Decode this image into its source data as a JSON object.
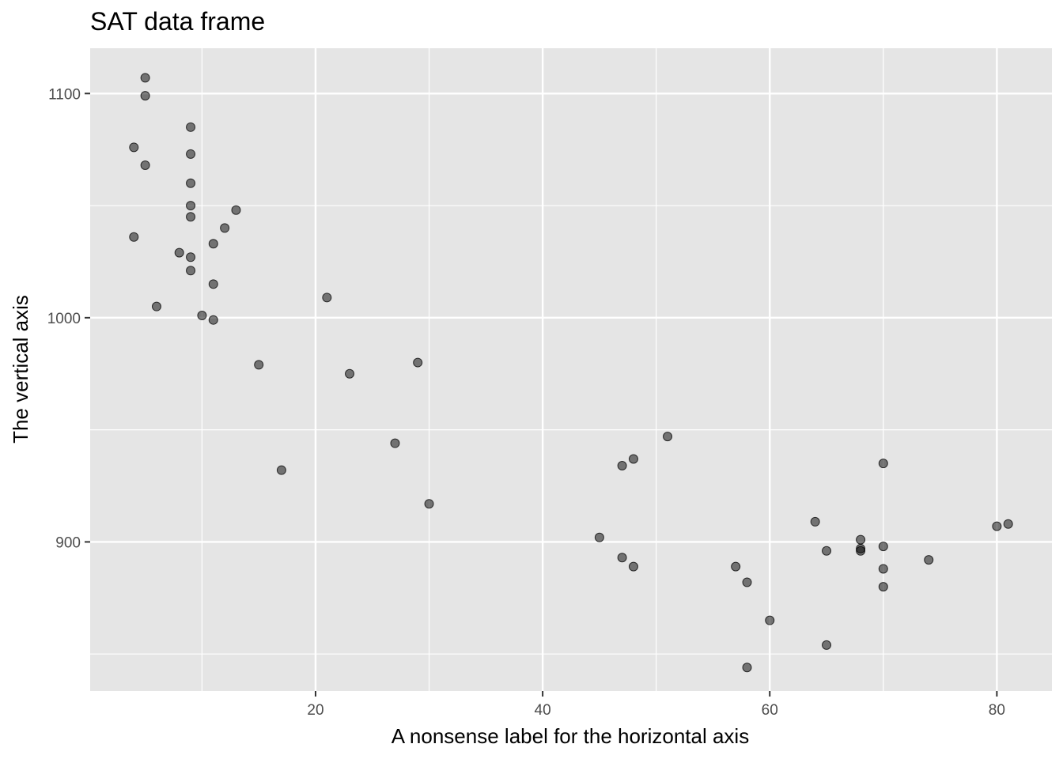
{
  "chart_data": {
    "type": "scatter",
    "title": "SAT data frame",
    "xlabel": "A nonsense label for the horizontal axis",
    "ylabel": "The vertical axis",
    "xlim": [
      0.15,
      84.85
    ],
    "ylim": [
      833.5,
      1120.2
    ],
    "x_ticks": [
      20,
      40,
      60,
      80
    ],
    "x_tick_labels": [
      "20",
      "40",
      "60",
      "80"
    ],
    "y_ticks": [
      900,
      1000,
      1100
    ],
    "y_tick_labels": [
      "900",
      "1000",
      "1100"
    ],
    "grid": true,
    "legend": "none",
    "colors": {
      "panel_background": "#e5e5e5",
      "grid": "#ffffff",
      "point_fill": "#000000",
      "point_opacity": 0.5
    },
    "points": [
      {
        "x": 5,
        "y": 1107
      },
      {
        "x": 5,
        "y": 1099
      },
      {
        "x": 4,
        "y": 1076
      },
      {
        "x": 5,
        "y": 1068
      },
      {
        "x": 4,
        "y": 1036
      },
      {
        "x": 6,
        "y": 1005
      },
      {
        "x": 9,
        "y": 1085
      },
      {
        "x": 9,
        "y": 1073
      },
      {
        "x": 9,
        "y": 1060
      },
      {
        "x": 9,
        "y": 1050
      },
      {
        "x": 9,
        "y": 1045
      },
      {
        "x": 9,
        "y": 1027
      },
      {
        "x": 9,
        "y": 1021
      },
      {
        "x": 8,
        "y": 1029
      },
      {
        "x": 10,
        "y": 1001
      },
      {
        "x": 11,
        "y": 1033
      },
      {
        "x": 11,
        "y": 1015
      },
      {
        "x": 11,
        "y": 999
      },
      {
        "x": 12,
        "y": 1040
      },
      {
        "x": 13,
        "y": 1048
      },
      {
        "x": 15,
        "y": 979
      },
      {
        "x": 17,
        "y": 932
      },
      {
        "x": 21,
        "y": 1009
      },
      {
        "x": 23,
        "y": 975
      },
      {
        "x": 27,
        "y": 944
      },
      {
        "x": 29,
        "y": 980
      },
      {
        "x": 30,
        "y": 917
      },
      {
        "x": 45,
        "y": 902
      },
      {
        "x": 47,
        "y": 934
      },
      {
        "x": 47,
        "y": 893
      },
      {
        "x": 48,
        "y": 937
      },
      {
        "x": 48,
        "y": 889
      },
      {
        "x": 51,
        "y": 947
      },
      {
        "x": 57,
        "y": 889
      },
      {
        "x": 58,
        "y": 882
      },
      {
        "x": 58,
        "y": 844
      },
      {
        "x": 60,
        "y": 865
      },
      {
        "x": 64,
        "y": 909
      },
      {
        "x": 65,
        "y": 896
      },
      {
        "x": 65,
        "y": 854
      },
      {
        "x": 68,
        "y": 901
      },
      {
        "x": 68,
        "y": 897
      },
      {
        "x": 68,
        "y": 896
      },
      {
        "x": 70,
        "y": 935
      },
      {
        "x": 70,
        "y": 898
      },
      {
        "x": 70,
        "y": 888
      },
      {
        "x": 70,
        "y": 880
      },
      {
        "x": 74,
        "y": 892
      },
      {
        "x": 80,
        "y": 907
      },
      {
        "x": 81,
        "y": 908
      }
    ]
  }
}
